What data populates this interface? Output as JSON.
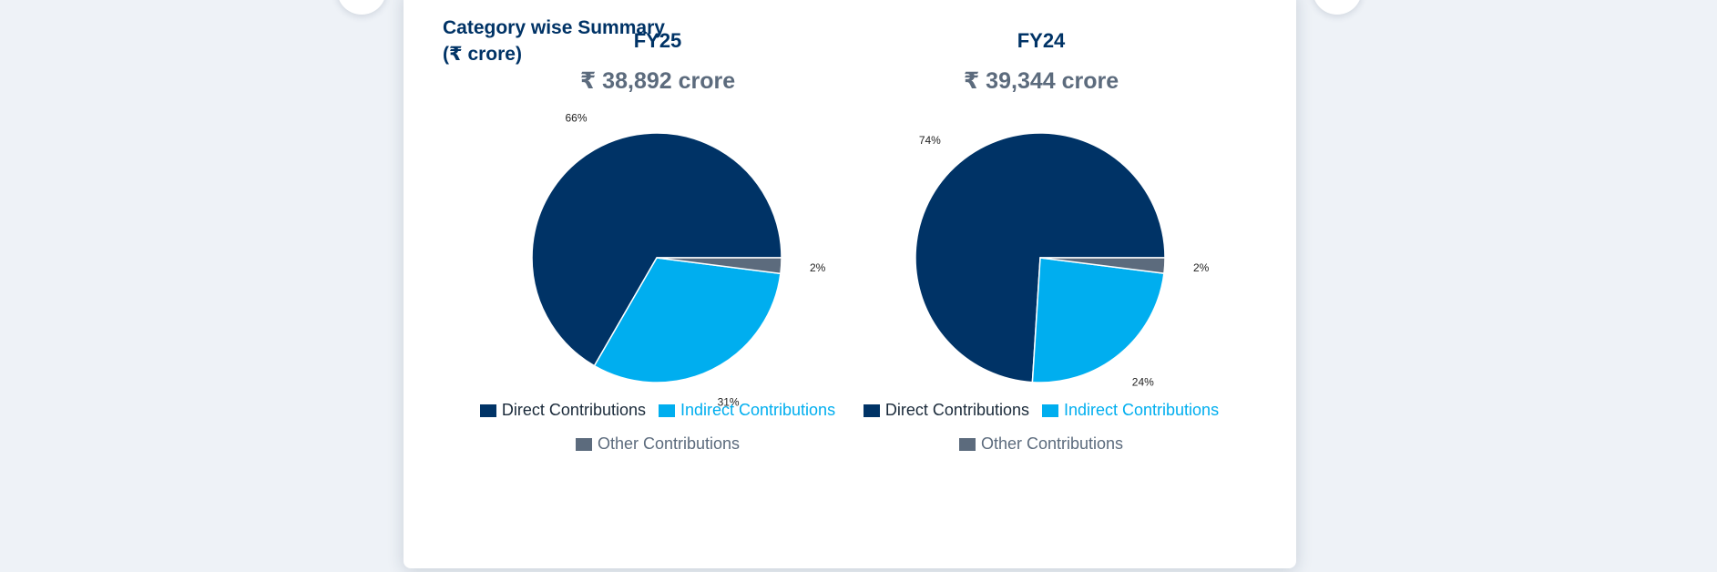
{
  "summary_title_line1": "Category wise Summary",
  "summary_title_line2": "(₹ crore)",
  "colors": {
    "direct": "#003366",
    "indirect": "#00aeef",
    "other": "#5c6b7d",
    "legend_direct_text": "#1a2a3a",
    "legend_indirect_text": "#00aeef",
    "legend_other_text": "#5c6b7d"
  },
  "legend_labels": {
    "direct": "Direct Contributions",
    "indirect": "Indirect Contributions",
    "other": "Other Contributions"
  },
  "chart_data": [
    {
      "type": "pie",
      "title": "FY25",
      "subtitle": "₹ 38,892 crore",
      "slices": [
        {
          "key": "direct",
          "label": "Direct Contributions",
          "value": 66,
          "data_label": "66%"
        },
        {
          "key": "indirect",
          "label": "Indirect Contributions",
          "value": 31,
          "data_label": "31%"
        },
        {
          "key": "other",
          "label": "Other Contributions",
          "value": 2,
          "data_label": "2%"
        }
      ]
    },
    {
      "type": "pie",
      "title": "FY24",
      "subtitle": "₹ 39,344 crore",
      "slices": [
        {
          "key": "direct",
          "label": "Direct Contributions",
          "value": 74,
          "data_label": "74%"
        },
        {
          "key": "indirect",
          "label": "Indirect Contributions",
          "value": 24,
          "data_label": "24%"
        },
        {
          "key": "other",
          "label": "Other Contributions",
          "value": 2,
          "data_label": "2%"
        }
      ]
    }
  ]
}
